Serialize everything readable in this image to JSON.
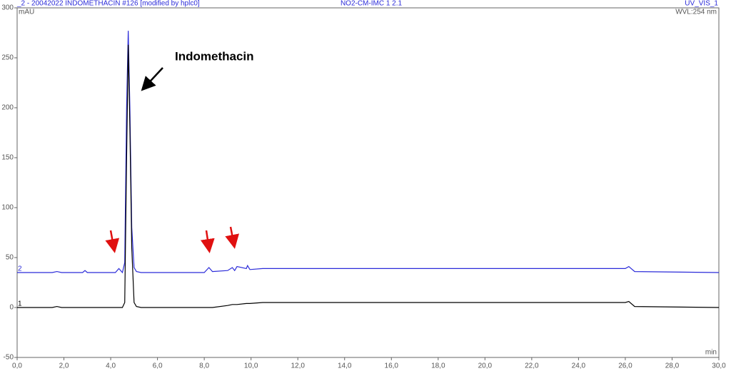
{
  "chart_data": {
    "type": "line",
    "title": "_2 - 20042022 INDOMETHACIN #126 [modified by hplc0]",
    "subtitle": "NO2-CM-IMC 1 2.1",
    "channel": "UV_VIS_1",
    "wavelength": "WVL:254 nm",
    "y_label": "mAU",
    "x_label": "min",
    "annotations": [
      "Indomethacin"
    ],
    "x": [
      0,
      1.5,
      1.7,
      1.9,
      2.8,
      2.9,
      3.0,
      4.2,
      4.35,
      4.5,
      4.6,
      4.68,
      4.75,
      4.82,
      4.9,
      5.0,
      5.1,
      5.3,
      8.0,
      8.2,
      8.35,
      9.0,
      9.2,
      9.3,
      9.4,
      9.8,
      9.85,
      9.95,
      10.5,
      26.0,
      26.15,
      26.4,
      30.0
    ],
    "series": [
      {
        "name": "2",
        "color": "#2b2bd9",
        "values": [
          35,
          35,
          36,
          35,
          35,
          37,
          35,
          35,
          39,
          35,
          45,
          200,
          277,
          200,
          80,
          40,
          36,
          35,
          35,
          40,
          36,
          37,
          40,
          37,
          41,
          39,
          42,
          38,
          39,
          39,
          41,
          36,
          35
        ]
      },
      {
        "name": "1",
        "color": "#000000",
        "values": [
          0,
          0,
          1,
          0,
          0,
          0,
          0,
          0,
          0,
          0,
          5,
          150,
          263,
          180,
          60,
          5,
          1,
          0,
          0,
          0,
          0,
          2,
          3,
          3,
          3,
          4,
          4,
          4,
          5,
          5,
          6,
          1,
          0
        ]
      }
    ],
    "xlim": [
      0,
      30
    ],
    "xticks": [
      {
        "value": 0,
        "label": "0,0"
      },
      {
        "value": 2,
        "label": "2,0"
      },
      {
        "value": 4,
        "label": "4,0"
      },
      {
        "value": 6,
        "label": "6,0"
      },
      {
        "value": 8,
        "label": "8,0"
      },
      {
        "value": 10,
        "label": "10,0"
      },
      {
        "value": 12,
        "label": "12,0"
      },
      {
        "value": 14,
        "label": "14,0"
      },
      {
        "value": 16,
        "label": "16,0"
      },
      {
        "value": 18,
        "label": "18,0"
      },
      {
        "value": 20,
        "label": "20,0"
      },
      {
        "value": 22,
        "label": "22,0"
      },
      {
        "value": 24,
        "label": "24,0"
      },
      {
        "value": 26,
        "label": "26,0"
      },
      {
        "value": 28,
        "label": "28,0"
      },
      {
        "value": 30,
        "label": "30,0"
      }
    ],
    "ylim": [
      -50,
      300
    ],
    "yticks": [
      -50,
      0,
      50,
      100,
      150,
      200,
      250,
      300
    ],
    "grid": false
  }
}
